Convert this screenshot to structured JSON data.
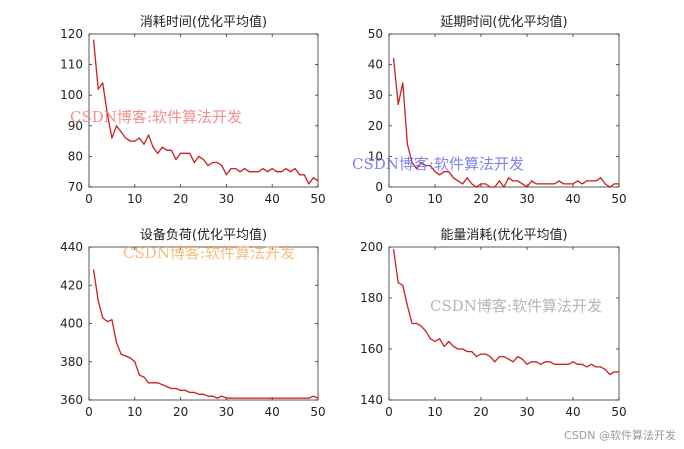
{
  "colors": {
    "line": "#cc1f1f",
    "axis": "#333333",
    "watermark_red": "#f27d7d",
    "watermark_blue": "#6b6bf0",
    "watermark_orange": "#f5b06a",
    "watermark_gray": "#a8a8a8"
  },
  "watermark_text": "CSDN博客:软件算法开发",
  "footer_text": "CSDN @软件算法开发",
  "chart_data": [
    {
      "type": "line",
      "title": "消耗时间(优化平均值)",
      "xlabel": "",
      "ylabel": "",
      "xlim": [
        0,
        50
      ],
      "ylim": [
        70,
        120
      ],
      "xticks": [
        0,
        10,
        20,
        30,
        40,
        50
      ],
      "yticks": [
        70,
        80,
        90,
        100,
        110,
        120
      ],
      "series": [
        {
          "name": "消耗时间",
          "x": [
            1,
            2,
            3,
            4,
            5,
            6,
            7,
            8,
            9,
            10,
            11,
            12,
            13,
            14,
            15,
            16,
            17,
            18,
            19,
            20,
            21,
            22,
            23,
            24,
            25,
            26,
            27,
            28,
            29,
            30,
            31,
            32,
            33,
            34,
            35,
            36,
            37,
            38,
            39,
            40,
            41,
            42,
            43,
            44,
            45,
            46,
            47,
            48,
            49,
            50
          ],
          "values": [
            118,
            102,
            104,
            94,
            86,
            90,
            88,
            86,
            85,
            85,
            86,
            84,
            87,
            83,
            81,
            83,
            82,
            82,
            79,
            81,
            81,
            81,
            78,
            80,
            79,
            77,
            78,
            78,
            77,
            74,
            76,
            76,
            75,
            76,
            75,
            75,
            75,
            76,
            75,
            76,
            75,
            75,
            76,
            75,
            76,
            74,
            74,
            71,
            73,
            72
          ]
        }
      ]
    },
    {
      "type": "line",
      "title": "延期时间(优化平均值)",
      "xlabel": "",
      "ylabel": "",
      "xlim": [
        0,
        50
      ],
      "ylim": [
        0,
        50
      ],
      "xticks": [
        0,
        10,
        20,
        30,
        40,
        50
      ],
      "yticks": [
        0,
        10,
        20,
        30,
        40,
        50
      ],
      "series": [
        {
          "name": "延期时间",
          "x": [
            1,
            2,
            3,
            4,
            5,
            6,
            7,
            8,
            9,
            10,
            11,
            12,
            13,
            14,
            15,
            16,
            17,
            18,
            19,
            20,
            21,
            22,
            23,
            24,
            25,
            26,
            27,
            28,
            29,
            30,
            31,
            32,
            33,
            34,
            35,
            36,
            37,
            38,
            39,
            40,
            41,
            42,
            43,
            44,
            45,
            46,
            47,
            48,
            49,
            50
          ],
          "values": [
            42,
            27,
            34,
            14,
            8,
            6,
            8,
            7,
            7,
            5,
            4,
            5,
            5,
            3,
            2,
            1,
            3,
            1,
            0,
            1,
            1,
            0,
            0,
            2,
            0,
            3,
            2,
            2,
            1,
            0,
            2,
            1,
            1,
            1,
            1,
            1,
            2,
            1,
            1,
            1,
            2,
            1,
            2,
            2,
            2,
            3,
            1,
            0,
            1,
            1
          ]
        }
      ]
    },
    {
      "type": "line",
      "title": "设备负荷(优化平均值)",
      "xlabel": "",
      "ylabel": "",
      "xlim": [
        0,
        50
      ],
      "ylim": [
        360,
        440
      ],
      "xticks": [
        0,
        10,
        20,
        30,
        40,
        50
      ],
      "yticks": [
        360,
        380,
        400,
        420,
        440
      ],
      "series": [
        {
          "name": "设备负荷",
          "x": [
            1,
            2,
            3,
            4,
            5,
            6,
            7,
            8,
            9,
            10,
            11,
            12,
            13,
            14,
            15,
            16,
            17,
            18,
            19,
            20,
            21,
            22,
            23,
            24,
            25,
            26,
            27,
            28,
            29,
            30,
            31,
            32,
            33,
            34,
            35,
            36,
            37,
            38,
            39,
            40,
            41,
            42,
            43,
            44,
            45,
            46,
            47,
            48,
            49,
            50
          ],
          "values": [
            428,
            412,
            403,
            401,
            402,
            390,
            384,
            383,
            382,
            380,
            373,
            372,
            369,
            369,
            369,
            368,
            367,
            366,
            366,
            365,
            365,
            364,
            364,
            363,
            363,
            362,
            362,
            361,
            362,
            361,
            361,
            361,
            361,
            361,
            361,
            361,
            361,
            361,
            361,
            361,
            361,
            361,
            361,
            361,
            361,
            361,
            361,
            361,
            362,
            361
          ]
        }
      ]
    },
    {
      "type": "line",
      "title": "能量消耗(优化平均值)",
      "xlabel": "",
      "ylabel": "",
      "xlim": [
        0,
        50
      ],
      "ylim": [
        140,
        200
      ],
      "xticks": [
        0,
        10,
        20,
        30,
        40,
        50
      ],
      "yticks": [
        140,
        160,
        180,
        200
      ],
      "series": [
        {
          "name": "能量消耗",
          "x": [
            1,
            2,
            3,
            4,
            5,
            6,
            7,
            8,
            9,
            10,
            11,
            12,
            13,
            14,
            15,
            16,
            17,
            18,
            19,
            20,
            21,
            22,
            23,
            24,
            25,
            26,
            27,
            28,
            29,
            30,
            31,
            32,
            33,
            34,
            35,
            36,
            37,
            38,
            39,
            40,
            41,
            42,
            43,
            44,
            45,
            46,
            47,
            48,
            49,
            50
          ],
          "values": [
            199,
            186,
            185,
            177,
            170,
            170,
            169,
            167,
            164,
            163,
            164,
            161,
            163,
            161,
            160,
            160,
            159,
            159,
            157,
            158,
            158,
            157,
            155,
            157,
            157,
            156,
            155,
            157,
            156,
            154,
            155,
            155,
            154,
            155,
            155,
            154,
            154,
            154,
            154,
            155,
            154,
            154,
            153,
            154,
            153,
            153,
            152,
            150,
            151,
            151
          ]
        }
      ]
    }
  ]
}
